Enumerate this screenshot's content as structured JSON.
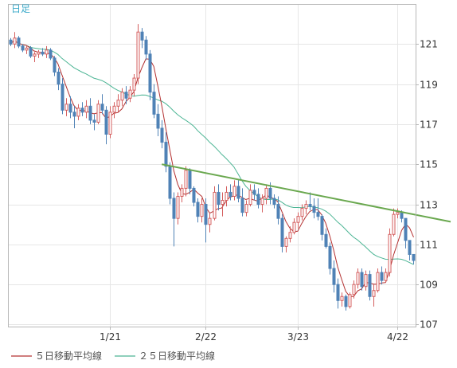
{
  "period_label": "日足",
  "colors": {
    "up": "#d45f5f",
    "down": "#4f82b6",
    "ma5": "#b33030",
    "ma25": "#4cb594",
    "trend": "#6aa84f"
  },
  "legend": {
    "ma5": "５日移動平均線",
    "ma25": "２５日移動平均線"
  },
  "chart_data": {
    "type": "candlestick",
    "y_ticks": [
      "107",
      "109",
      "111",
      "113",
      "115",
      "117",
      "119",
      "121"
    ],
    "x_ticks": [
      {
        "label": "1/21",
        "index": 25
      },
      {
        "label": "2/22",
        "index": 49
      },
      {
        "label": "3/23",
        "index": 72
      },
      {
        "label": "4/22",
        "index": 97
      }
    ],
    "ylim": [
      106.9,
      123
    ],
    "n_slots": 102,
    "grid": true,
    "candles": [
      [
        121.2,
        121.3,
        120.9,
        121.0
      ],
      [
        121.0,
        121.6,
        120.8,
        121.3
      ],
      [
        121.3,
        121.4,
        120.8,
        120.9
      ],
      [
        120.9,
        121.0,
        120.6,
        120.7
      ],
      [
        120.7,
        120.9,
        120.5,
        120.8
      ],
      [
        120.8,
        120.9,
        120.3,
        120.4
      ],
      [
        120.4,
        120.6,
        120.1,
        120.5
      ],
      [
        120.5,
        120.7,
        120.3,
        120.6
      ],
      [
        120.6,
        120.8,
        120.4,
        120.5
      ],
      [
        120.5,
        120.9,
        120.3,
        120.7
      ],
      [
        120.7,
        120.8,
        120.2,
        120.3
      ],
      [
        120.3,
        120.4,
        119.4,
        119.6
      ],
      [
        119.6,
        119.8,
        118.7,
        119.0
      ],
      [
        119.0,
        119.3,
        117.5,
        117.7
      ],
      [
        117.7,
        118.3,
        117.4,
        118.0
      ],
      [
        118.0,
        118.4,
        117.3,
        117.6
      ],
      [
        117.6,
        117.9,
        116.8,
        117.4
      ],
      [
        117.4,
        118.0,
        117.2,
        117.8
      ],
      [
        117.8,
        118.1,
        117.4,
        117.6
      ],
      [
        117.6,
        118.2,
        117.3,
        117.9
      ],
      [
        117.9,
        118.3,
        117.0,
        117.2
      ],
      [
        117.2,
        117.5,
        116.7,
        117.1
      ],
      [
        117.1,
        118.2,
        117.0,
        118.0
      ],
      [
        118.0,
        118.5,
        117.5,
        117.7
      ],
      [
        117.7,
        117.9,
        116.0,
        116.5
      ],
      [
        116.5,
        117.9,
        116.3,
        117.6
      ],
      [
        117.6,
        118.1,
        117.3,
        117.9
      ],
      [
        117.9,
        118.5,
        117.6,
        118.2
      ],
      [
        118.2,
        118.8,
        117.9,
        118.6
      ],
      [
        118.6,
        118.9,
        118.0,
        118.3
      ],
      [
        118.3,
        118.9,
        118.1,
        118.7
      ],
      [
        118.7,
        119.5,
        118.4,
        119.3
      ],
      [
        119.3,
        122.0,
        119.0,
        121.6
      ],
      [
        121.6,
        121.8,
        120.8,
        121.2
      ],
      [
        121.2,
        121.4,
        120.2,
        120.5
      ],
      [
        120.5,
        120.7,
        118.2,
        118.6
      ],
      [
        118.6,
        119.0,
        117.3,
        117.5
      ],
      [
        117.5,
        118.0,
        116.4,
        116.8
      ],
      [
        116.8,
        117.2,
        115.8,
        116.1
      ],
      [
        116.1,
        116.6,
        114.6,
        114.9
      ],
      [
        114.9,
        115.1,
        113.0,
        113.3
      ],
      [
        113.3,
        113.6,
        110.9,
        112.3
      ],
      [
        112.3,
        113.6,
        112.0,
        113.4
      ],
      [
        113.4,
        114.0,
        113.1,
        113.8
      ],
      [
        113.8,
        114.9,
        113.4,
        114.7
      ],
      [
        114.7,
        114.8,
        113.5,
        113.8
      ],
      [
        113.8,
        113.9,
        112.9,
        113.1
      ],
      [
        113.1,
        113.3,
        112.1,
        112.4
      ],
      [
        112.4,
        113.3,
        112.1,
        113.0
      ],
      [
        113.0,
        113.3,
        111.1,
        112.0
      ],
      [
        112.0,
        112.6,
        111.6,
        112.3
      ],
      [
        112.3,
        113.9,
        112.2,
        113.6
      ],
      [
        113.6,
        114.0,
        112.7,
        113.0
      ],
      [
        113.0,
        113.6,
        112.4,
        113.2
      ],
      [
        113.2,
        113.9,
        112.9,
        113.6
      ],
      [
        113.6,
        114.0,
        113.2,
        113.4
      ],
      [
        113.4,
        114.2,
        113.2,
        113.9
      ],
      [
        113.9,
        114.2,
        113.1,
        113.3
      ],
      [
        113.3,
        113.8,
        112.4,
        112.6
      ],
      [
        112.6,
        113.2,
        112.4,
        113.0
      ],
      [
        113.0,
        114.0,
        112.9,
        113.7
      ],
      [
        113.7,
        114.0,
        113.2,
        113.5
      ],
      [
        113.5,
        113.8,
        112.8,
        113.0
      ],
      [
        113.0,
        113.5,
        112.6,
        113.3
      ],
      [
        113.3,
        114.0,
        113.0,
        113.8
      ],
      [
        113.8,
        114.1,
        113.0,
        113.3
      ],
      [
        113.3,
        113.5,
        112.8,
        113.0
      ],
      [
        113.0,
        113.4,
        112.0,
        112.3
      ],
      [
        112.3,
        112.5,
        110.6,
        110.9
      ],
      [
        110.9,
        111.4,
        110.6,
        111.3
      ],
      [
        111.3,
        111.9,
        111.1,
        111.6
      ],
      [
        111.6,
        112.3,
        111.5,
        112.1
      ],
      [
        112.1,
        112.6,
        111.8,
        112.4
      ],
      [
        112.4,
        113.0,
        112.2,
        112.8
      ],
      [
        112.8,
        113.2,
        112.5,
        113.0
      ],
      [
        113.0,
        113.6,
        112.7,
        112.9
      ],
      [
        112.9,
        113.3,
        112.3,
        112.6
      ],
      [
        112.6,
        113.3,
        112.2,
        112.4
      ],
      [
        112.4,
        112.5,
        111.2,
        111.5
      ],
      [
        111.5,
        111.8,
        110.8,
        110.9
      ],
      [
        110.9,
        111.1,
        109.5,
        109.8
      ],
      [
        109.8,
        110.2,
        108.6,
        109.0
      ],
      [
        109.0,
        109.3,
        107.8,
        108.2
      ],
      [
        108.2,
        108.6,
        107.9,
        108.4
      ],
      [
        108.4,
        108.5,
        107.7,
        107.9
      ],
      [
        107.9,
        108.6,
        107.8,
        108.5
      ],
      [
        108.5,
        109.2,
        108.3,
        109.0
      ],
      [
        109.0,
        109.8,
        108.8,
        109.6
      ],
      [
        109.6,
        109.8,
        108.7,
        108.9
      ],
      [
        108.9,
        109.7,
        108.7,
        109.5
      ],
      [
        109.5,
        109.7,
        108.2,
        108.4
      ],
      [
        108.4,
        109.0,
        107.9,
        108.7
      ],
      [
        108.7,
        109.8,
        108.6,
        109.6
      ],
      [
        109.6,
        109.9,
        109.0,
        109.2
      ],
      [
        109.2,
        109.8,
        109.1,
        109.6
      ],
      [
        109.6,
        111.8,
        109.4,
        111.5
      ],
      [
        111.5,
        112.8,
        111.4,
        112.5
      ],
      [
        112.5,
        112.8,
        112.3,
        112.6
      ],
      [
        112.6,
        112.7,
        112.1,
        112.3
      ],
      [
        112.3,
        112.3,
        110.8,
        111.2
      ],
      [
        111.2,
        111.2,
        110.2,
        110.5
      ],
      [
        110.5,
        110.5,
        110.0,
        110.2
      ]
    ],
    "trend_line": {
      "from": [
        38,
        115.0
      ],
      "to": [
        101,
        112.5
      ]
    }
  }
}
